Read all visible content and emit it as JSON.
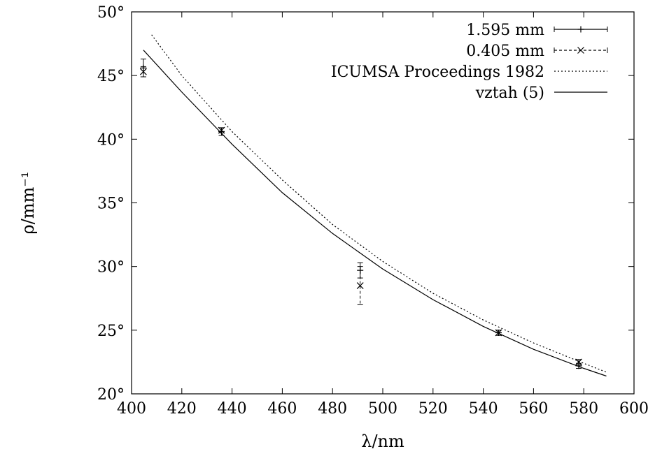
{
  "chart_data": {
    "type": "scatter",
    "xlabel": "λ/nm",
    "ylabel": "ρ/mm⁻¹",
    "xlim": [
      400,
      600
    ],
    "ylim": [
      20,
      50
    ],
    "xticks": [
      400,
      420,
      440,
      460,
      480,
      500,
      520,
      540,
      560,
      580,
      600
    ],
    "yticks": [
      20,
      25,
      30,
      35,
      40,
      45,
      50
    ],
    "ytick_suffix": "°",
    "grid": false,
    "legend_position": "top-right",
    "series": [
      {
        "name": "1.595 mm",
        "kind": "points-errorbars",
        "marker": "plus",
        "style": "solid",
        "points": [
          {
            "x": 404.7,
            "y": 45.6,
            "err": 0.7
          },
          {
            "x": 435.8,
            "y": 40.6,
            "err": 0.3
          },
          {
            "x": 491.0,
            "y": 29.7,
            "err": 0.6
          },
          {
            "x": 546.1,
            "y": 24.8,
            "err": 0.2
          },
          {
            "x": 578.0,
            "y": 22.2,
            "err": 0.2
          }
        ]
      },
      {
        "name": "0.405 mm",
        "kind": "points-errorbars",
        "marker": "cross",
        "style": "dashed",
        "points": [
          {
            "x": 404.7,
            "y": 45.3,
            "err": 0.4
          },
          {
            "x": 435.8,
            "y": 40.7,
            "err": 0.2
          },
          {
            "x": 491.0,
            "y": 28.5,
            "err": 1.5
          },
          {
            "x": 546.1,
            "y": 24.8,
            "err": 0.2
          },
          {
            "x": 578.0,
            "y": 22.5,
            "err": 0.2
          }
        ]
      },
      {
        "name": "ICUMSA Proceedings 1982",
        "kind": "line",
        "style": "dotted",
        "x": [
          408,
          420,
          440,
          460,
          480,
          500,
          520,
          540,
          560,
          580,
          589
        ],
        "y": [
          48.2,
          45.0,
          40.6,
          36.8,
          33.3,
          30.4,
          27.9,
          25.8,
          24.0,
          22.4,
          21.7
        ]
      },
      {
        "name": "vztah (5)",
        "kind": "line",
        "style": "solid",
        "x": [
          404.7,
          420,
          440,
          460,
          480,
          500,
          520,
          540,
          560,
          580,
          589
        ],
        "y": [
          47.0,
          43.7,
          39.6,
          35.8,
          32.6,
          29.8,
          27.4,
          25.3,
          23.5,
          22.0,
          21.4
        ]
      }
    ]
  }
}
